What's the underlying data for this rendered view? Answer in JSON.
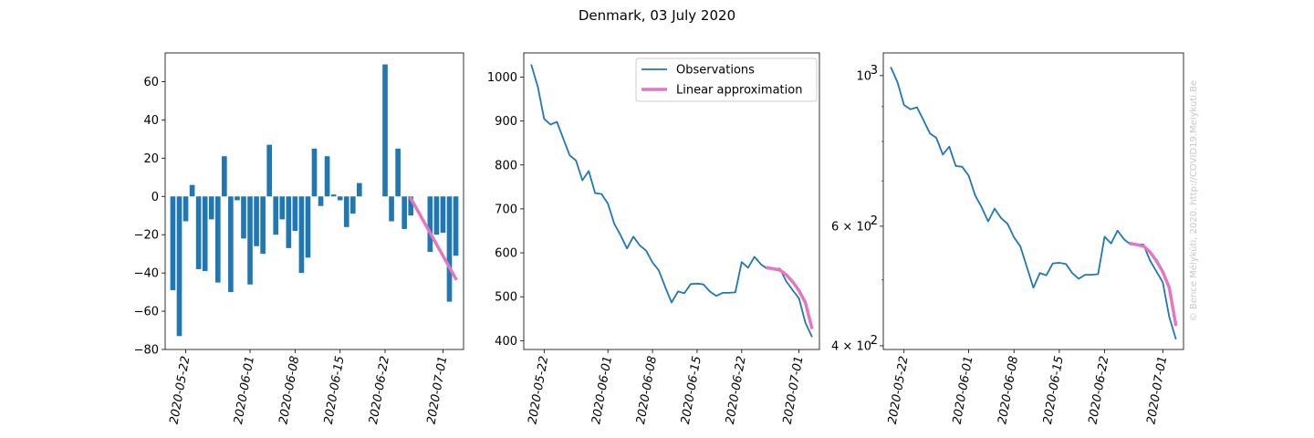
{
  "figure": {
    "title": "Denmark, 03 July 2020",
    "watermark": "© Bence Mélykúti, 2020. http://COVID19.Melykuti.Be"
  },
  "chart_data": [
    {
      "type": "bar",
      "title": "",
      "xlabel": "",
      "ylabel": "",
      "x_start": "2020-05-20",
      "dates": [
        "2020-05-20",
        "2020-05-21",
        "2020-05-22",
        "2020-05-23",
        "2020-05-24",
        "2020-05-25",
        "2020-05-26",
        "2020-05-27",
        "2020-05-28",
        "2020-05-29",
        "2020-05-30",
        "2020-05-31",
        "2020-06-01",
        "2020-06-02",
        "2020-06-03",
        "2020-06-04",
        "2020-06-05",
        "2020-06-06",
        "2020-06-07",
        "2020-06-08",
        "2020-06-09",
        "2020-06-10",
        "2020-06-11",
        "2020-06-12",
        "2020-06-13",
        "2020-06-14",
        "2020-06-15",
        "2020-06-16",
        "2020-06-17",
        "2020-06-18",
        "2020-06-19",
        "2020-06-20",
        "2020-06-21",
        "2020-06-22",
        "2020-06-23",
        "2020-06-24",
        "2020-06-25",
        "2020-06-26",
        "2020-06-27",
        "2020-06-28",
        "2020-06-29",
        "2020-06-30",
        "2020-07-01",
        "2020-07-02",
        "2020-07-03"
      ],
      "values": [
        -49,
        -73,
        -13,
        6,
        -38,
        -39,
        -12,
        -45,
        21,
        -50,
        -2,
        -22,
        -46,
        -26,
        -30,
        27,
        -20,
        -12,
        -27,
        -18,
        -40,
        -32,
        25,
        -5,
        21,
        1,
        -2,
        -16,
        -9,
        7,
        0,
        0,
        0,
        69,
        -13,
        25,
        -17,
        -10,
        0,
        0,
        -29,
        -20,
        -19,
        -55,
        -31
      ],
      "linear_approximation": {
        "x": [
          "2020-06-26",
          "2020-07-03"
        ],
        "y": [
          -1,
          -43
        ]
      },
      "ylim": [
        -80,
        75
      ],
      "yticks": [
        -80,
        -60,
        -40,
        -20,
        0,
        20,
        40,
        60
      ],
      "xticks": [
        "2020-05-22",
        "2020-06-01",
        "2020-06-08",
        "2020-06-15",
        "2020-06-22",
        "2020-07-01"
      ],
      "colors": {
        "bar": "#1f77b4",
        "fit": "#e377c2"
      }
    },
    {
      "type": "line",
      "title": "",
      "xlabel": "",
      "ylabel": "",
      "series": [
        {
          "name": "Observations",
          "color": "#1f77b4",
          "x_start": "2020-05-20",
          "values": [
            1027,
            978,
            905,
            892,
            898,
            860,
            822,
            810,
            765,
            786,
            736,
            734,
            712,
            666,
            640,
            610,
            637,
            617,
            605,
            578,
            560,
            522,
            487,
            512,
            508,
            529,
            530,
            528,
            512,
            502,
            509,
            509,
            510,
            579,
            566,
            591,
            574,
            564,
            564,
            564,
            535,
            515,
            496,
            441,
            410
          ]
        },
        {
          "name": "Linear approximation",
          "color": "#e377c2",
          "x": [
            "2020-06-26",
            "2020-06-28",
            "2020-06-29",
            "2020-06-30",
            "2020-07-01",
            "2020-07-02",
            "2020-07-03"
          ],
          "values": [
            566,
            561,
            550,
            534,
            514,
            487,
            430
          ]
        }
      ],
      "ylim": [
        380,
        1055
      ],
      "yticks": [
        400,
        500,
        600,
        700,
        800,
        900,
        1000
      ],
      "xticks": [
        "2020-05-22",
        "2020-06-01",
        "2020-06-08",
        "2020-06-15",
        "2020-06-22",
        "2020-07-01"
      ],
      "legend": "top-right"
    },
    {
      "type": "line",
      "yscale": "log",
      "title": "",
      "xlabel": "",
      "ylabel": "",
      "ylim": [
        395,
        1080
      ],
      "yticks": [
        {
          "value": 400,
          "label": "4 × 10",
          "exp": "2"
        },
        {
          "value": 600,
          "label": "6 × 10",
          "exp": "2"
        },
        {
          "value": 1000,
          "label": "10",
          "exp": "3"
        }
      ],
      "yminor_ticks": [
        500,
        700,
        800,
        900
      ],
      "xticks": [
        "2020-05-22",
        "2020-06-01",
        "2020-06-08",
        "2020-06-15",
        "2020-06-22",
        "2020-07-01"
      ],
      "same_series_as_panel": 2
    }
  ]
}
